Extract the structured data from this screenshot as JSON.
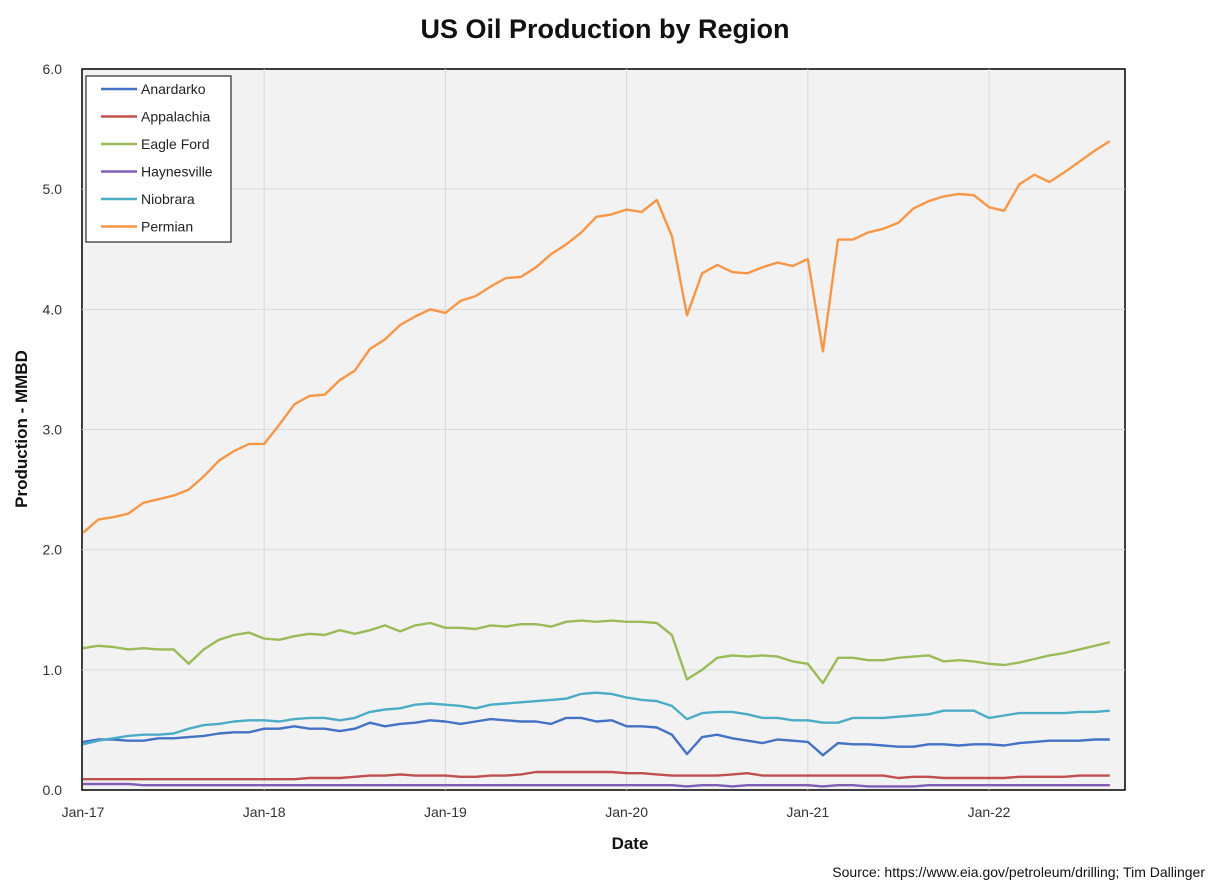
{
  "chart_data": {
    "type": "line",
    "title": "US Oil Production by Region",
    "xlabel": "Date",
    "ylabel": "Production - MMBD",
    "source": "Source: https://www.eia.gov/petroleum/drilling; Tim Dallinger",
    "ylim": [
      0,
      6
    ],
    "yticks": [
      "0.0",
      "1.0",
      "2.0",
      "3.0",
      "4.0",
      "5.0",
      "6.0"
    ],
    "xlim": [
      "2017-01",
      "2022-09"
    ],
    "xticks": [
      "Jan-17",
      "Jan-18",
      "Jan-19",
      "Jan-20",
      "Jan-21",
      "Jan-22"
    ],
    "grid": true,
    "legend_position": "top-left",
    "x": [
      "2017-01",
      "2017-02",
      "2017-03",
      "2017-04",
      "2017-05",
      "2017-06",
      "2017-07",
      "2017-08",
      "2017-09",
      "2017-10",
      "2017-11",
      "2017-12",
      "2018-01",
      "2018-02",
      "2018-03",
      "2018-04",
      "2018-05",
      "2018-06",
      "2018-07",
      "2018-08",
      "2018-09",
      "2018-10",
      "2018-11",
      "2018-12",
      "2019-01",
      "2019-02",
      "2019-03",
      "2019-04",
      "2019-05",
      "2019-06",
      "2019-07",
      "2019-08",
      "2019-09",
      "2019-10",
      "2019-11",
      "2019-12",
      "2020-01",
      "2020-02",
      "2020-03",
      "2020-04",
      "2020-05",
      "2020-06",
      "2020-07",
      "2020-08",
      "2020-09",
      "2020-10",
      "2020-11",
      "2020-12",
      "2021-01",
      "2021-02",
      "2021-03",
      "2021-04",
      "2021-05",
      "2021-06",
      "2021-07",
      "2021-08",
      "2021-09",
      "2021-10",
      "2021-11",
      "2021-12",
      "2022-01",
      "2022-02",
      "2022-03",
      "2022-04",
      "2022-05",
      "2022-06",
      "2022-07",
      "2022-08",
      "2022-09"
    ],
    "series": [
      {
        "name": "Anardarko",
        "color": "#4472c4",
        "values": [
          0.4,
          0.42,
          0.42,
          0.41,
          0.41,
          0.43,
          0.43,
          0.44,
          0.45,
          0.47,
          0.48,
          0.48,
          0.51,
          0.51,
          0.53,
          0.51,
          0.51,
          0.49,
          0.51,
          0.56,
          0.53,
          0.55,
          0.56,
          0.58,
          0.57,
          0.55,
          0.57,
          0.59,
          0.58,
          0.57,
          0.57,
          0.55,
          0.6,
          0.6,
          0.57,
          0.58,
          0.53,
          0.53,
          0.52,
          0.46,
          0.3,
          0.44,
          0.46,
          0.43,
          0.41,
          0.39,
          0.42,
          0.41,
          0.4,
          0.29,
          0.39,
          0.38,
          0.38,
          0.37,
          0.36,
          0.36,
          0.38,
          0.38,
          0.37,
          0.38,
          0.38,
          0.37,
          0.39,
          0.4,
          0.41,
          0.41,
          0.41,
          0.42,
          0.42
        ]
      },
      {
        "name": "Appalachia",
        "color": "#c0504d",
        "values": [
          0.09,
          0.09,
          0.09,
          0.09,
          0.09,
          0.09,
          0.09,
          0.09,
          0.09,
          0.09,
          0.09,
          0.09,
          0.09,
          0.09,
          0.09,
          0.1,
          0.1,
          0.1,
          0.11,
          0.12,
          0.12,
          0.13,
          0.12,
          0.12,
          0.12,
          0.11,
          0.11,
          0.12,
          0.12,
          0.13,
          0.15,
          0.15,
          0.15,
          0.15,
          0.15,
          0.15,
          0.14,
          0.14,
          0.13,
          0.12,
          0.12,
          0.12,
          0.12,
          0.13,
          0.14,
          0.12,
          0.12,
          0.12,
          0.12,
          0.12,
          0.12,
          0.12,
          0.12,
          0.12,
          0.1,
          0.11,
          0.11,
          0.1,
          0.1,
          0.1,
          0.1,
          0.1,
          0.11,
          0.11,
          0.11,
          0.11,
          0.12,
          0.12,
          0.12
        ]
      },
      {
        "name": "Eagle Ford",
        "color": "#9bbb59",
        "values": [
          1.18,
          1.2,
          1.19,
          1.17,
          1.18,
          1.17,
          1.17,
          1.05,
          1.17,
          1.25,
          1.29,
          1.31,
          1.26,
          1.25,
          1.28,
          1.3,
          1.29,
          1.33,
          1.3,
          1.33,
          1.37,
          1.32,
          1.37,
          1.39,
          1.35,
          1.35,
          1.34,
          1.37,
          1.36,
          1.38,
          1.38,
          1.36,
          1.4,
          1.41,
          1.4,
          1.41,
          1.4,
          1.4,
          1.39,
          1.29,
          0.92,
          1.0,
          1.1,
          1.12,
          1.11,
          1.12,
          1.11,
          1.07,
          1.05,
          0.89,
          1.1,
          1.1,
          1.08,
          1.08,
          1.1,
          1.11,
          1.12,
          1.07,
          1.08,
          1.07,
          1.05,
          1.04,
          1.06,
          1.09,
          1.12,
          1.14,
          1.17,
          1.2,
          1.23
        ]
      },
      {
        "name": "Haynesville",
        "color": "#7f5fb5",
        "values": [
          0.05,
          0.05,
          0.05,
          0.05,
          0.04,
          0.04,
          0.04,
          0.04,
          0.04,
          0.04,
          0.04,
          0.04,
          0.04,
          0.04,
          0.04,
          0.04,
          0.04,
          0.04,
          0.04,
          0.04,
          0.04,
          0.04,
          0.04,
          0.04,
          0.04,
          0.04,
          0.04,
          0.04,
          0.04,
          0.04,
          0.04,
          0.04,
          0.04,
          0.04,
          0.04,
          0.04,
          0.04,
          0.04,
          0.04,
          0.04,
          0.03,
          0.04,
          0.04,
          0.03,
          0.04,
          0.04,
          0.04,
          0.04,
          0.04,
          0.03,
          0.04,
          0.04,
          0.03,
          0.03,
          0.03,
          0.03,
          0.04,
          0.04,
          0.04,
          0.04,
          0.04,
          0.04,
          0.04,
          0.04,
          0.04,
          0.04,
          0.04,
          0.04,
          0.04
        ]
      },
      {
        "name": "Niobrara",
        "color": "#4bacc6",
        "values": [
          0.38,
          0.41,
          0.43,
          0.45,
          0.46,
          0.46,
          0.47,
          0.51,
          0.54,
          0.55,
          0.57,
          0.58,
          0.58,
          0.57,
          0.59,
          0.6,
          0.6,
          0.58,
          0.6,
          0.65,
          0.67,
          0.68,
          0.71,
          0.72,
          0.71,
          0.7,
          0.68,
          0.71,
          0.72,
          0.73,
          0.74,
          0.75,
          0.76,
          0.8,
          0.81,
          0.8,
          0.77,
          0.75,
          0.74,
          0.7,
          0.59,
          0.64,
          0.65,
          0.65,
          0.63,
          0.6,
          0.6,
          0.58,
          0.58,
          0.56,
          0.56,
          0.6,
          0.6,
          0.6,
          0.61,
          0.62,
          0.63,
          0.66,
          0.66,
          0.66,
          0.6,
          0.62,
          0.64,
          0.64,
          0.64,
          0.64,
          0.65,
          0.65,
          0.66
        ]
      },
      {
        "name": "Permian",
        "color": "#f79646",
        "values": [
          2.14,
          2.25,
          2.27,
          2.3,
          2.39,
          2.42,
          2.45,
          2.5,
          2.61,
          2.74,
          2.82,
          2.88,
          2.88,
          3.04,
          3.21,
          3.28,
          3.29,
          3.41,
          3.49,
          3.67,
          3.75,
          3.87,
          3.94,
          4.0,
          3.97,
          4.07,
          4.11,
          4.19,
          4.26,
          4.27,
          4.35,
          4.46,
          4.54,
          4.64,
          4.77,
          4.79,
          4.83,
          4.81,
          4.91,
          4.61,
          3.95,
          4.3,
          4.37,
          4.31,
          4.3,
          4.35,
          4.39,
          4.36,
          4.42,
          3.65,
          4.58,
          4.58,
          4.64,
          4.67,
          4.72,
          4.84,
          4.9,
          4.94,
          4.96,
          4.95,
          4.85,
          4.82,
          5.04,
          5.12,
          5.06,
          5.14,
          5.23,
          5.32,
          5.4
        ]
      }
    ]
  }
}
